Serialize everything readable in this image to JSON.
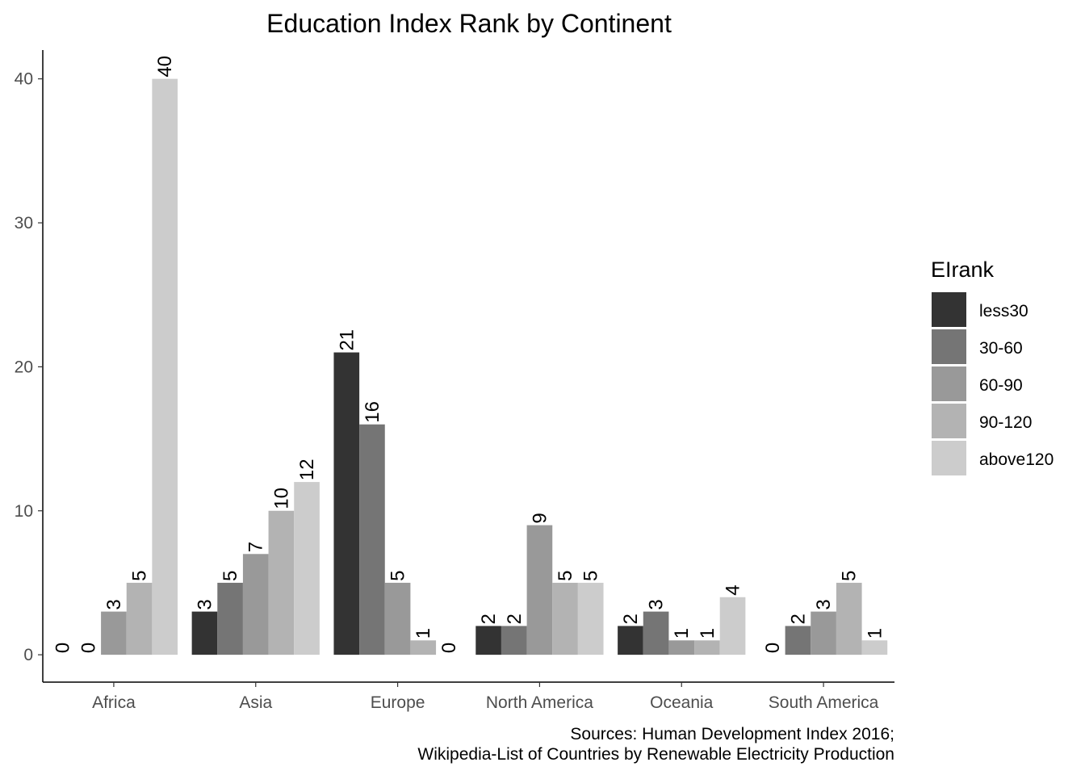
{
  "chart_data": {
    "type": "bar",
    "title": "Education Index Rank by Continent",
    "xlabel": "",
    "ylabel": "",
    "categories": [
      "Africa",
      "Asia",
      "Europe",
      "North America",
      "Oceania",
      "South America"
    ],
    "series": [
      {
        "name": "less30",
        "color": "#333333",
        "values": [
          0,
          3,
          21,
          2,
          2,
          0
        ]
      },
      {
        "name": "30-60",
        "color": "#757575",
        "values": [
          0,
          5,
          16,
          2,
          3,
          2
        ]
      },
      {
        "name": "60-90",
        "color": "#999999",
        "values": [
          3,
          7,
          5,
          9,
          1,
          3
        ]
      },
      {
        "name": "90-120",
        "color": "#b3b3b3",
        "values": [
          5,
          10,
          1,
          5,
          1,
          5
        ]
      },
      {
        "name": "above120",
        "color": "#cccccc",
        "values": [
          40,
          12,
          0,
          5,
          4,
          1
        ]
      }
    ],
    "y_ticks": [
      "0",
      "10",
      "20",
      "30",
      "40"
    ],
    "ylim": [
      -1.9,
      42
    ],
    "legend": {
      "title": "EIrank",
      "position": "right"
    },
    "caption": [
      "Sources: Human Development Index 2016;",
      "Wikipedia-List of Countries by Renewable Electricity Production"
    ],
    "grid": false
  }
}
